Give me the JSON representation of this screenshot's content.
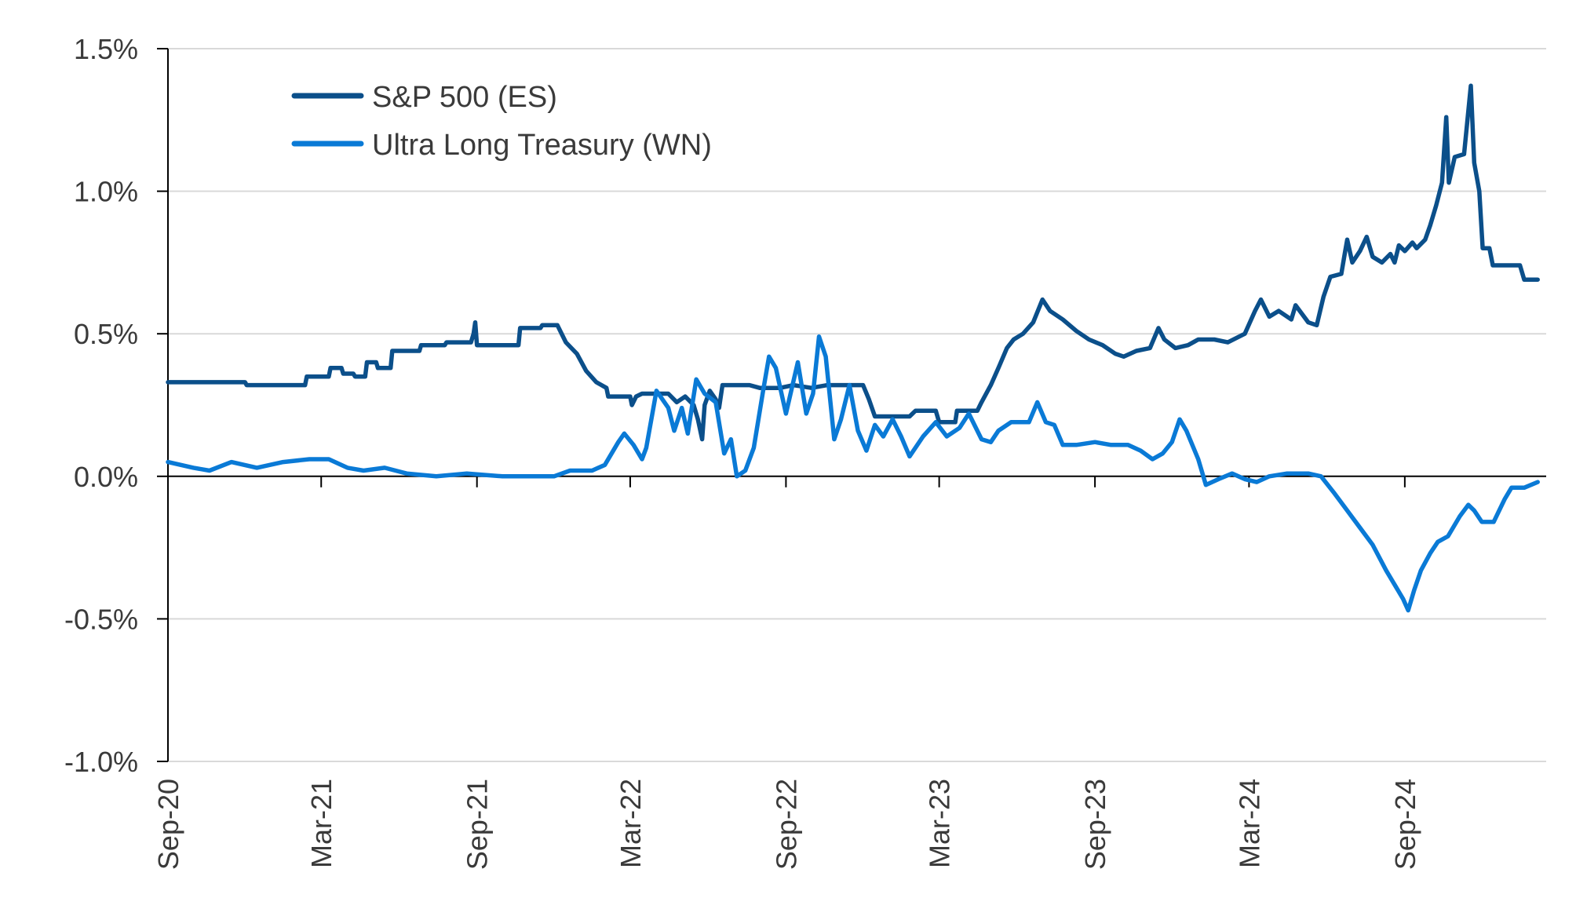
{
  "chart_data": {
    "type": "line",
    "title": "",
    "xlabel": "",
    "ylabel": "",
    "x_axis": {
      "min": "2020-09-01",
      "max": "2025-02-15",
      "ticks": [
        {
          "date": "2020-09-01",
          "label": "Sep-20"
        },
        {
          "date": "2021-03-01",
          "label": "Mar-21"
        },
        {
          "date": "2021-09-01",
          "label": "Sep-21"
        },
        {
          "date": "2022-03-01",
          "label": "Mar-22"
        },
        {
          "date": "2022-09-01",
          "label": "Sep-22"
        },
        {
          "date": "2023-03-01",
          "label": "Mar-23"
        },
        {
          "date": "2023-09-01",
          "label": "Sep-23"
        },
        {
          "date": "2024-03-01",
          "label": "Mar-24"
        },
        {
          "date": "2024-09-01",
          "label": "Sep-24"
        }
      ]
    },
    "y_axis": {
      "min": -1.0,
      "max": 1.5,
      "ticks": [
        {
          "value": 1.5,
          "label": "1.5%"
        },
        {
          "value": 1.0,
          "label": "1.0%"
        },
        {
          "value": 0.5,
          "label": "0.5%"
        },
        {
          "value": 0.0,
          "label": "0.0%"
        },
        {
          "value": -0.5,
          "label": "-0.5%"
        },
        {
          "value": -1.0,
          "label": "-1.0%"
        }
      ]
    },
    "grid": true,
    "legend_position": "top-left",
    "series": [
      {
        "name": "S&P 500 (ES)",
        "color": "#0b4f8a",
        "points": [
          [
            "2020-09-01",
            0.33
          ],
          [
            "2020-10-15",
            0.33
          ],
          [
            "2020-11-15",
            0.33
          ],
          [
            "2020-12-01",
            0.33
          ],
          [
            "2020-12-03",
            0.32
          ],
          [
            "2021-01-15",
            0.32
          ],
          [
            "2021-02-10",
            0.32
          ],
          [
            "2021-02-12",
            0.35
          ],
          [
            "2021-03-10",
            0.35
          ],
          [
            "2021-03-12",
            0.38
          ],
          [
            "2021-03-25",
            0.38
          ],
          [
            "2021-03-27",
            0.36
          ],
          [
            "2021-04-08",
            0.36
          ],
          [
            "2021-04-10",
            0.35
          ],
          [
            "2021-04-22",
            0.35
          ],
          [
            "2021-04-24",
            0.4
          ],
          [
            "2021-05-05",
            0.4
          ],
          [
            "2021-05-07",
            0.38
          ],
          [
            "2021-05-22",
            0.38
          ],
          [
            "2021-05-24",
            0.44
          ],
          [
            "2021-06-25",
            0.44
          ],
          [
            "2021-06-27",
            0.46
          ],
          [
            "2021-07-25",
            0.46
          ],
          [
            "2021-07-27",
            0.47
          ],
          [
            "2021-08-25",
            0.47
          ],
          [
            "2021-08-28",
            0.5
          ],
          [
            "2021-08-30",
            0.54
          ],
          [
            "2021-09-01",
            0.46
          ],
          [
            "2021-10-10",
            0.46
          ],
          [
            "2021-10-20",
            0.46
          ],
          [
            "2021-10-22",
            0.52
          ],
          [
            "2021-11-15",
            0.52
          ],
          [
            "2021-11-17",
            0.53
          ],
          [
            "2021-12-05",
            0.53
          ],
          [
            "2021-12-15",
            0.47
          ],
          [
            "2021-12-28",
            0.43
          ],
          [
            "2022-01-08",
            0.37
          ],
          [
            "2022-01-20",
            0.33
          ],
          [
            "2022-02-01",
            0.31
          ],
          [
            "2022-02-03",
            0.28
          ],
          [
            "2022-03-01",
            0.28
          ],
          [
            "2022-03-03",
            0.25
          ],
          [
            "2022-03-08",
            0.28
          ],
          [
            "2022-03-15",
            0.29
          ],
          [
            "2022-04-15",
            0.29
          ],
          [
            "2022-04-25",
            0.26
          ],
          [
            "2022-05-05",
            0.28
          ],
          [
            "2022-05-15",
            0.25
          ],
          [
            "2022-05-20",
            0.2
          ],
          [
            "2022-05-25",
            0.13
          ],
          [
            "2022-05-28",
            0.25
          ],
          [
            "2022-06-03",
            0.3
          ],
          [
            "2022-06-10",
            0.27
          ],
          [
            "2022-06-14",
            0.24
          ],
          [
            "2022-06-18",
            0.32
          ],
          [
            "2022-07-20",
            0.32
          ],
          [
            "2022-08-01",
            0.31
          ],
          [
            "2022-08-15",
            0.31
          ],
          [
            "2022-08-25",
            0.31
          ],
          [
            "2022-09-10",
            0.32
          ],
          [
            "2022-10-01",
            0.31
          ],
          [
            "2022-10-20",
            0.32
          ],
          [
            "2022-11-20",
            0.32
          ],
          [
            "2022-12-01",
            0.32
          ],
          [
            "2022-12-08",
            0.27
          ],
          [
            "2022-12-15",
            0.21
          ],
          [
            "2023-01-25",
            0.21
          ],
          [
            "2023-02-01",
            0.23
          ],
          [
            "2023-02-25",
            0.23
          ],
          [
            "2023-03-01",
            0.19
          ],
          [
            "2023-03-20",
            0.19
          ],
          [
            "2023-03-22",
            0.23
          ],
          [
            "2023-04-15",
            0.23
          ],
          [
            "2023-04-20",
            0.26
          ],
          [
            "2023-05-01",
            0.32
          ],
          [
            "2023-05-10",
            0.38
          ],
          [
            "2023-05-20",
            0.45
          ],
          [
            "2023-05-28",
            0.48
          ],
          [
            "2023-06-08",
            0.5
          ],
          [
            "2023-06-20",
            0.54
          ],
          [
            "2023-07-01",
            0.62
          ],
          [
            "2023-07-10",
            0.58
          ],
          [
            "2023-07-25",
            0.55
          ],
          [
            "2023-08-10",
            0.51
          ],
          [
            "2023-08-25",
            0.48
          ],
          [
            "2023-09-10",
            0.46
          ],
          [
            "2023-09-25",
            0.43
          ],
          [
            "2023-10-05",
            0.42
          ],
          [
            "2023-10-20",
            0.44
          ],
          [
            "2023-11-05",
            0.45
          ],
          [
            "2023-11-15",
            0.52
          ],
          [
            "2023-11-22",
            0.48
          ],
          [
            "2023-12-05",
            0.45
          ],
          [
            "2023-12-20",
            0.46
          ],
          [
            "2024-01-01",
            0.48
          ],
          [
            "2024-01-20",
            0.48
          ],
          [
            "2024-02-05",
            0.47
          ],
          [
            "2024-02-25",
            0.5
          ],
          [
            "2024-03-08",
            0.58
          ],
          [
            "2024-03-15",
            0.62
          ],
          [
            "2024-03-25",
            0.56
          ],
          [
            "2024-04-05",
            0.58
          ],
          [
            "2024-04-20",
            0.55
          ],
          [
            "2024-04-25",
            0.6
          ],
          [
            "2024-05-10",
            0.54
          ],
          [
            "2024-05-20",
            0.53
          ],
          [
            "2024-05-28",
            0.63
          ],
          [
            "2024-06-05",
            0.7
          ],
          [
            "2024-06-18",
            0.71
          ],
          [
            "2024-06-22",
            0.78
          ],
          [
            "2024-06-25",
            0.83
          ],
          [
            "2024-07-01",
            0.75
          ],
          [
            "2024-07-10",
            0.79
          ],
          [
            "2024-07-18",
            0.84
          ],
          [
            "2024-07-25",
            0.77
          ],
          [
            "2024-08-05",
            0.75
          ],
          [
            "2024-08-15",
            0.78
          ],
          [
            "2024-08-20",
            0.75
          ],
          [
            "2024-08-25",
            0.81
          ],
          [
            "2024-09-01",
            0.79
          ],
          [
            "2024-09-10",
            0.82
          ],
          [
            "2024-09-15",
            0.8
          ],
          [
            "2024-09-25",
            0.83
          ],
          [
            "2024-10-01",
            0.88
          ],
          [
            "2024-10-08",
            0.95
          ],
          [
            "2024-10-15",
            1.03
          ],
          [
            "2024-10-20",
            1.26
          ],
          [
            "2024-10-23",
            1.03
          ],
          [
            "2024-10-30",
            1.12
          ],
          [
            "2024-11-10",
            1.13
          ],
          [
            "2024-11-18",
            1.37
          ],
          [
            "2024-11-22",
            1.1
          ],
          [
            "2024-11-28",
            1.0
          ],
          [
            "2024-12-02",
            0.8
          ],
          [
            "2024-12-10",
            0.8
          ],
          [
            "2024-12-14",
            0.74
          ],
          [
            "2025-01-15",
            0.74
          ],
          [
            "2025-01-20",
            0.69
          ],
          [
            "2025-02-05",
            0.69
          ]
        ]
      },
      {
        "name": "Ultra Long Treasury (WN)",
        "color": "#0a7ad6",
        "points": [
          [
            "2020-09-01",
            0.05
          ],
          [
            "2020-10-01",
            0.03
          ],
          [
            "2020-10-20",
            0.02
          ],
          [
            "2020-11-15",
            0.05
          ],
          [
            "2020-12-15",
            0.03
          ],
          [
            "2021-01-15",
            0.05
          ],
          [
            "2021-02-15",
            0.06
          ],
          [
            "2021-03-10",
            0.06
          ],
          [
            "2021-04-01",
            0.03
          ],
          [
            "2021-04-20",
            0.02
          ],
          [
            "2021-05-15",
            0.03
          ],
          [
            "2021-06-10",
            0.01
          ],
          [
            "2021-07-15",
            0.0
          ],
          [
            "2021-08-20",
            0.01
          ],
          [
            "2021-10-01",
            0.0
          ],
          [
            "2021-11-01",
            0.0
          ],
          [
            "2021-12-01",
            0.0
          ],
          [
            "2021-12-20",
            0.02
          ],
          [
            "2022-01-15",
            0.02
          ],
          [
            "2022-01-30",
            0.04
          ],
          [
            "2022-02-15",
            0.12
          ],
          [
            "2022-02-22",
            0.15
          ],
          [
            "2022-03-05",
            0.11
          ],
          [
            "2022-03-15",
            0.06
          ],
          [
            "2022-03-20",
            0.1
          ],
          [
            "2022-04-01",
            0.3
          ],
          [
            "2022-04-15",
            0.24
          ],
          [
            "2022-04-22",
            0.16
          ],
          [
            "2022-05-01",
            0.24
          ],
          [
            "2022-05-08",
            0.15
          ],
          [
            "2022-05-18",
            0.34
          ],
          [
            "2022-05-28",
            0.29
          ],
          [
            "2022-06-10",
            0.26
          ],
          [
            "2022-06-20",
            0.08
          ],
          [
            "2022-06-28",
            0.13
          ],
          [
            "2022-07-05",
            0.0
          ],
          [
            "2022-07-15",
            0.02
          ],
          [
            "2022-07-25",
            0.1
          ],
          [
            "2022-08-05",
            0.3
          ],
          [
            "2022-08-12",
            0.42
          ],
          [
            "2022-08-20",
            0.38
          ],
          [
            "2022-09-01",
            0.22
          ],
          [
            "2022-09-15",
            0.4
          ],
          [
            "2022-09-25",
            0.22
          ],
          [
            "2022-10-03",
            0.29
          ],
          [
            "2022-10-10",
            0.49
          ],
          [
            "2022-10-18",
            0.42
          ],
          [
            "2022-10-28",
            0.13
          ],
          [
            "2022-11-05",
            0.2
          ],
          [
            "2022-11-15",
            0.32
          ],
          [
            "2022-11-25",
            0.16
          ],
          [
            "2022-12-05",
            0.09
          ],
          [
            "2022-12-15",
            0.18
          ],
          [
            "2022-12-25",
            0.14
          ],
          [
            "2023-01-05",
            0.2
          ],
          [
            "2023-01-15",
            0.14
          ],
          [
            "2023-01-25",
            0.07
          ],
          [
            "2023-02-10",
            0.14
          ],
          [
            "2023-02-25",
            0.19
          ],
          [
            "2023-03-10",
            0.14
          ],
          [
            "2023-03-25",
            0.17
          ],
          [
            "2023-04-05",
            0.22
          ],
          [
            "2023-04-20",
            0.13
          ],
          [
            "2023-05-01",
            0.12
          ],
          [
            "2023-05-10",
            0.16
          ],
          [
            "2023-05-25",
            0.19
          ],
          [
            "2023-06-15",
            0.19
          ],
          [
            "2023-06-25",
            0.26
          ],
          [
            "2023-07-05",
            0.19
          ],
          [
            "2023-07-15",
            0.18
          ],
          [
            "2023-07-25",
            0.11
          ],
          [
            "2023-08-10",
            0.11
          ],
          [
            "2023-09-01",
            0.12
          ],
          [
            "2023-09-20",
            0.11
          ],
          [
            "2023-10-10",
            0.11
          ],
          [
            "2023-10-25",
            0.09
          ],
          [
            "2023-11-08",
            0.06
          ],
          [
            "2023-11-20",
            0.08
          ],
          [
            "2023-12-01",
            0.12
          ],
          [
            "2023-12-10",
            0.2
          ],
          [
            "2023-12-18",
            0.16
          ],
          [
            "2024-01-01",
            0.06
          ],
          [
            "2024-01-10",
            -0.03
          ],
          [
            "2024-01-25",
            -0.01
          ],
          [
            "2024-02-10",
            0.01
          ],
          [
            "2024-02-25",
            -0.01
          ],
          [
            "2024-03-10",
            -0.02
          ],
          [
            "2024-03-25",
            0.0
          ],
          [
            "2024-04-15",
            0.01
          ],
          [
            "2024-05-10",
            0.01
          ],
          [
            "2024-05-25",
            0.0
          ],
          [
            "2024-06-10",
            -0.06
          ],
          [
            "2024-06-25",
            -0.12
          ],
          [
            "2024-07-10",
            -0.18
          ],
          [
            "2024-07-25",
            -0.24
          ],
          [
            "2024-08-10",
            -0.33
          ],
          [
            "2024-08-20",
            -0.38
          ],
          [
            "2024-08-30",
            -0.43
          ],
          [
            "2024-09-05",
            -0.47
          ],
          [
            "2024-09-12",
            -0.4
          ],
          [
            "2024-09-20",
            -0.33
          ],
          [
            "2024-10-01",
            -0.27
          ],
          [
            "2024-10-10",
            -0.23
          ],
          [
            "2024-10-22",
            -0.21
          ],
          [
            "2024-11-05",
            -0.14
          ],
          [
            "2024-11-15",
            -0.1
          ],
          [
            "2024-11-22",
            -0.12
          ],
          [
            "2024-12-01",
            -0.16
          ],
          [
            "2024-12-15",
            -0.16
          ],
          [
            "2024-12-28",
            -0.08
          ],
          [
            "2025-01-05",
            -0.04
          ],
          [
            "2025-01-20",
            -0.04
          ],
          [
            "2025-02-05",
            -0.02
          ]
        ]
      }
    ]
  }
}
